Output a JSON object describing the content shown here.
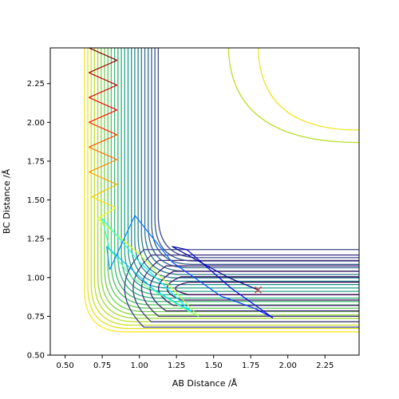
{
  "chart_data": {
    "type": "contour",
    "title": "",
    "xlabel": "AB Distance /Å",
    "ylabel": "BC Distance /Å",
    "xlim": [
      0.4,
      2.48
    ],
    "ylim": [
      0.5,
      2.48
    ],
    "x_ticks": [
      0.5,
      0.75,
      1.0,
      1.25,
      1.5,
      1.75,
      2.0,
      2.25
    ],
    "y_ticks": [
      0.5,
      0.75,
      1.0,
      1.25,
      1.5,
      1.75,
      2.0,
      2.25
    ],
    "x_tick_labels": [
      "0.50",
      "0.75",
      "1.00",
      "1.25",
      "1.50",
      "1.75",
      "2.00",
      "2.25"
    ],
    "y_tick_labels": [
      "0.50",
      "0.75",
      "1.00",
      "1.25",
      "1.50",
      "1.75",
      "2.00",
      "2.25"
    ],
    "grid": false,
    "legend": "none",
    "contour_colormap": "viridis",
    "contour_levels_count": 30,
    "marker": {
      "x": 1.8,
      "y": 0.92,
      "symbol": "x",
      "color": "#d62728"
    },
    "trajectory": {
      "colormap": "jet",
      "points": [
        [
          0.66,
          2.48
        ],
        [
          0.85,
          2.4
        ],
        [
          0.66,
          2.32
        ],
        [
          0.85,
          2.24
        ],
        [
          0.66,
          2.16
        ],
        [
          0.85,
          2.08
        ],
        [
          0.66,
          2.0
        ],
        [
          0.85,
          1.92
        ],
        [
          0.66,
          1.84
        ],
        [
          0.85,
          1.76
        ],
        [
          0.66,
          1.68
        ],
        [
          0.85,
          1.6
        ],
        [
          0.68,
          1.52
        ],
        [
          0.84,
          1.45
        ],
        [
          0.72,
          1.38
        ],
        [
          1.0,
          1.15
        ],
        [
          1.25,
          0.9
        ],
        [
          1.4,
          0.75
        ],
        [
          1.3,
          0.8
        ],
        [
          0.95,
          1.0
        ],
        [
          0.8,
          1.18
        ],
        [
          0.75,
          1.38
        ],
        [
          1.0,
          1.1
        ],
        [
          1.35,
          0.78
        ],
        [
          1.1,
          0.92
        ],
        [
          0.78,
          1.2
        ],
        [
          0.8,
          1.05
        ],
        [
          0.97,
          1.4
        ],
        [
          1.22,
          1.1
        ],
        [
          1.55,
          0.88
        ],
        [
          1.78,
          0.8
        ],
        [
          1.9,
          0.74
        ],
        [
          1.62,
          0.93
        ],
        [
          1.32,
          1.18
        ],
        [
          1.22,
          1.2
        ],
        [
          1.6,
          1.0
        ],
        [
          1.8,
          0.92
        ]
      ]
    }
  }
}
